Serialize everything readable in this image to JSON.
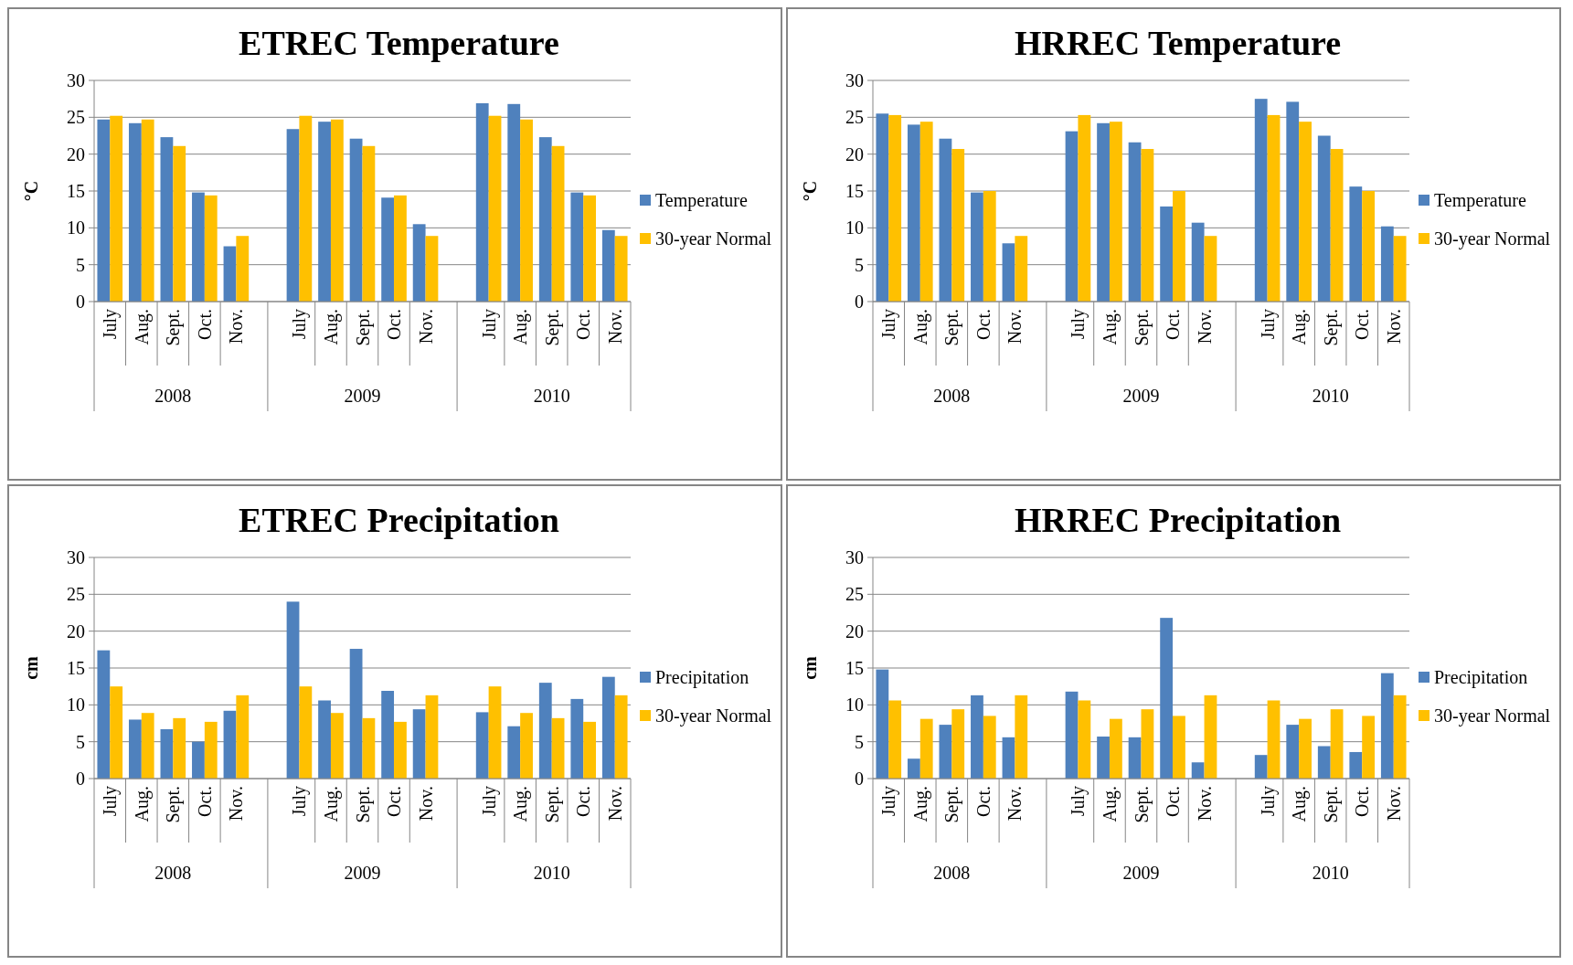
{
  "chart_data": [
    {
      "type": "bar",
      "title": "ETREC Temperature",
      "ylabel": "°C",
      "categories": [
        "July",
        "Aug.",
        "Sept.",
        "Oct.",
        "Nov.",
        null,
        "July",
        "Aug.",
        "Sept.",
        "Oct.",
        "Nov.",
        null,
        "July",
        "Aug.",
        "Sept.",
        "Oct.",
        "Nov."
      ],
      "annotations": [
        "2008",
        "2009",
        "2010"
      ],
      "ylim": [
        0,
        30
      ],
      "yticks": [
        0,
        5,
        10,
        15,
        20,
        25,
        30
      ],
      "grid": "y",
      "legend": "right",
      "series": [
        {
          "name": "Temperature",
          "color": "#4f81bd",
          "values": [
            24.7,
            24.2,
            22.3,
            14.8,
            7.5,
            null,
            23.4,
            24.4,
            22.1,
            14.1,
            10.5,
            null,
            26.9,
            26.8,
            22.3,
            14.8,
            9.7
          ]
        },
        {
          "name": "30-year Normal",
          "color": "#ffc000",
          "values": [
            25.2,
            24.7,
            21.1,
            14.4,
            8.9,
            null,
            25.2,
            24.7,
            21.1,
            14.4,
            8.9,
            null,
            25.2,
            24.7,
            21.1,
            14.4,
            8.9
          ]
        }
      ]
    },
    {
      "type": "bar",
      "title": "HRREC Temperature",
      "ylabel": "°C",
      "categories": [
        "July",
        "Aug.",
        "Sept.",
        "Oct.",
        "Nov.",
        null,
        "July",
        "Aug.",
        "Sept.",
        "Oct.",
        "Nov.",
        null,
        "July",
        "Aug.",
        "Sept.",
        "Oct.",
        "Nov."
      ],
      "annotations": [
        "2008",
        "2009",
        "2010"
      ],
      "ylim": [
        0,
        30
      ],
      "yticks": [
        0,
        5,
        10,
        15,
        20,
        25,
        30
      ],
      "grid": "y",
      "legend": "right",
      "series": [
        {
          "name": "Temperature",
          "color": "#4f81bd",
          "values": [
            25.5,
            24.0,
            22.1,
            14.8,
            7.9,
            null,
            23.1,
            24.2,
            21.6,
            12.9,
            10.7,
            null,
            27.5,
            27.1,
            22.5,
            15.6,
            10.2
          ]
        },
        {
          "name": "30-year Normal",
          "color": "#ffc000",
          "values": [
            25.3,
            24.4,
            20.7,
            15.0,
            8.9,
            null,
            25.3,
            24.4,
            20.7,
            15.0,
            8.9,
            null,
            25.3,
            24.4,
            20.7,
            15.0,
            8.9
          ]
        }
      ]
    },
    {
      "type": "bar",
      "title": "ETREC Precipitation",
      "ylabel": "cm",
      "categories": [
        "July",
        "Aug.",
        "Sept.",
        "Oct.",
        "Nov.",
        null,
        "July",
        "Aug.",
        "Sept.",
        "Oct.",
        "Nov.",
        null,
        "July",
        "Aug.",
        "Sept.",
        "Oct.",
        "Nov."
      ],
      "annotations": [
        "2008",
        "2009",
        "2010"
      ],
      "ylim": [
        0,
        30
      ],
      "yticks": [
        0,
        5,
        10,
        15,
        20,
        25,
        30
      ],
      "grid": "y",
      "legend": "right",
      "series": [
        {
          "name": "Precipitation",
          "color": "#4f81bd",
          "values": [
            17.4,
            8.0,
            6.7,
            5.0,
            9.2,
            null,
            24.0,
            10.6,
            17.6,
            11.9,
            9.4,
            null,
            9.0,
            7.1,
            13.0,
            10.8,
            13.8
          ]
        },
        {
          "name": "30-year Normal",
          "color": "#ffc000",
          "values": [
            12.5,
            8.9,
            8.2,
            7.7,
            11.3,
            null,
            12.5,
            8.9,
            8.2,
            7.7,
            11.3,
            null,
            12.5,
            8.9,
            8.2,
            7.7,
            11.3
          ]
        }
      ]
    },
    {
      "type": "bar",
      "title": "HRREC Precipitation",
      "ylabel": "cm",
      "categories": [
        "July",
        "Aug.",
        "Sept.",
        "Oct.",
        "Nov.",
        null,
        "July",
        "Aug.",
        "Sept.",
        "Oct.",
        "Nov.",
        null,
        "July",
        "Aug.",
        "Sept.",
        "Oct.",
        "Nov."
      ],
      "annotations": [
        "2008",
        "2009",
        "2010"
      ],
      "ylim": [
        0,
        30
      ],
      "yticks": [
        0,
        5,
        10,
        15,
        20,
        25,
        30
      ],
      "grid": "y",
      "legend": "right",
      "series": [
        {
          "name": "Precipitation",
          "color": "#4f81bd",
          "values": [
            14.8,
            2.7,
            7.3,
            11.3,
            5.6,
            null,
            11.8,
            5.7,
            5.6,
            21.8,
            2.2,
            null,
            3.2,
            7.3,
            4.4,
            3.6,
            14.3
          ]
        },
        {
          "name": "30-year Normal",
          "color": "#ffc000",
          "values": [
            10.6,
            8.1,
            9.4,
            8.5,
            11.3,
            null,
            10.6,
            8.1,
            9.4,
            8.5,
            11.3,
            null,
            10.6,
            8.1,
            9.4,
            8.5,
            11.3
          ]
        }
      ]
    }
  ]
}
